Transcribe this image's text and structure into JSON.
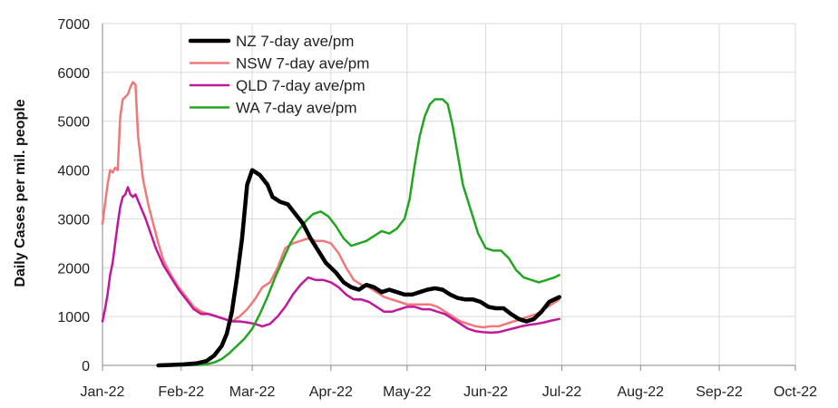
{
  "chart_data": {
    "type": "line",
    "title": "",
    "xlabel": "",
    "ylabel": "Daily Cases per mil. people",
    "ylim": [
      0,
      7000
    ],
    "yticks": [
      0,
      1000,
      2000,
      3000,
      4000,
      5000,
      6000,
      7000
    ],
    "xlim": [
      "2022-01-01",
      "2022-10-01"
    ],
    "xticks": [
      {
        "date": "2022-01-01",
        "label": "Jan-22"
      },
      {
        "date": "2022-02-01",
        "label": "Feb-22"
      },
      {
        "date": "2022-03-01",
        "label": "Mar-22"
      },
      {
        "date": "2022-04-01",
        "label": "Apr-22"
      },
      {
        "date": "2022-05-01",
        "label": "May-22"
      },
      {
        "date": "2022-06-01",
        "label": "Jun-22"
      },
      {
        "date": "2022-07-01",
        "label": "Jul-22"
      },
      {
        "date": "2022-08-01",
        "label": "Aug-22"
      },
      {
        "date": "2022-09-01",
        "label": "Sep-22"
      },
      {
        "date": "2022-10-01",
        "label": "Oct-22"
      }
    ],
    "grid": true,
    "legend_position": "top-left",
    "series": [
      {
        "name": "NZ 7-day ave/pm",
        "color": "#000000",
        "width": 4.5,
        "points": [
          [
            "2022-01-23",
            0
          ],
          [
            "2022-01-28",
            10
          ],
          [
            "2022-02-02",
            20
          ],
          [
            "2022-02-07",
            40
          ],
          [
            "2022-02-11",
            90
          ],
          [
            "2022-02-14",
            200
          ],
          [
            "2022-02-17",
            400
          ],
          [
            "2022-02-19",
            650
          ],
          [
            "2022-02-21",
            1100
          ],
          [
            "2022-02-23",
            1800
          ],
          [
            "2022-02-25",
            2600
          ],
          [
            "2022-02-27",
            3700
          ],
          [
            "2022-03-01",
            4000
          ],
          [
            "2022-03-04",
            3900
          ],
          [
            "2022-03-07",
            3700
          ],
          [
            "2022-03-09",
            3450
          ],
          [
            "2022-03-12",
            3350
          ],
          [
            "2022-03-15",
            3300
          ],
          [
            "2022-03-18",
            3100
          ],
          [
            "2022-03-21",
            2900
          ],
          [
            "2022-03-24",
            2600
          ],
          [
            "2022-03-27",
            2350
          ],
          [
            "2022-03-30",
            2100
          ],
          [
            "2022-04-03",
            1900
          ],
          [
            "2022-04-06",
            1700
          ],
          [
            "2022-04-09",
            1600
          ],
          [
            "2022-04-12",
            1550
          ],
          [
            "2022-04-15",
            1650
          ],
          [
            "2022-04-18",
            1600
          ],
          [
            "2022-04-21",
            1500
          ],
          [
            "2022-04-24",
            1550
          ],
          [
            "2022-04-27",
            1500
          ],
          [
            "2022-04-30",
            1450
          ],
          [
            "2022-05-03",
            1450
          ],
          [
            "2022-05-06",
            1500
          ],
          [
            "2022-05-09",
            1550
          ],
          [
            "2022-05-12",
            1580
          ],
          [
            "2022-05-15",
            1550
          ],
          [
            "2022-05-18",
            1450
          ],
          [
            "2022-05-21",
            1380
          ],
          [
            "2022-05-24",
            1350
          ],
          [
            "2022-05-27",
            1350
          ],
          [
            "2022-05-30",
            1300
          ],
          [
            "2022-06-02",
            1200
          ],
          [
            "2022-06-05",
            1170
          ],
          [
            "2022-06-08",
            1170
          ],
          [
            "2022-06-11",
            1050
          ],
          [
            "2022-06-14",
            950
          ],
          [
            "2022-06-17",
            900
          ],
          [
            "2022-06-20",
            950
          ],
          [
            "2022-06-23",
            1100
          ],
          [
            "2022-06-26",
            1300
          ],
          [
            "2022-06-28",
            1350
          ],
          [
            "2022-06-30",
            1400
          ]
        ]
      },
      {
        "name": "NSW 7-day ave/pm",
        "color": "#f07878",
        "width": 2.5,
        "points": [
          [
            "2022-01-01",
            2900
          ],
          [
            "2022-01-02",
            3300
          ],
          [
            "2022-01-03",
            3700
          ],
          [
            "2022-01-04",
            4000
          ],
          [
            "2022-01-05",
            3950
          ],
          [
            "2022-01-06",
            4050
          ],
          [
            "2022-01-07",
            4000
          ],
          [
            "2022-01-08",
            5100
          ],
          [
            "2022-01-09",
            5450
          ],
          [
            "2022-01-10",
            5500
          ],
          [
            "2022-01-11",
            5550
          ],
          [
            "2022-01-12",
            5700
          ],
          [
            "2022-01-13",
            5800
          ],
          [
            "2022-01-14",
            5750
          ],
          [
            "2022-01-15",
            4700
          ],
          [
            "2022-01-17",
            3800
          ],
          [
            "2022-01-19",
            3300
          ],
          [
            "2022-01-21",
            2900
          ],
          [
            "2022-01-23",
            2500
          ],
          [
            "2022-01-25",
            2150
          ],
          [
            "2022-01-28",
            1850
          ],
          [
            "2022-01-31",
            1600
          ],
          [
            "2022-02-03",
            1400
          ],
          [
            "2022-02-06",
            1200
          ],
          [
            "2022-02-09",
            1100
          ],
          [
            "2022-02-12",
            1050
          ],
          [
            "2022-02-15",
            1000
          ],
          [
            "2022-02-18",
            950
          ],
          [
            "2022-02-21",
            900
          ],
          [
            "2022-02-24",
            1000
          ],
          [
            "2022-02-27",
            1150
          ],
          [
            "2022-03-02",
            1350
          ],
          [
            "2022-03-05",
            1600
          ],
          [
            "2022-03-08",
            1700
          ],
          [
            "2022-03-11",
            2000
          ],
          [
            "2022-03-14",
            2400
          ],
          [
            "2022-03-17",
            2500
          ],
          [
            "2022-03-20",
            2550
          ],
          [
            "2022-03-23",
            2600
          ],
          [
            "2022-03-26",
            2550
          ],
          [
            "2022-03-29",
            2550
          ],
          [
            "2022-04-01",
            2500
          ],
          [
            "2022-04-04",
            2300
          ],
          [
            "2022-04-07",
            2000
          ],
          [
            "2022-04-10",
            1750
          ],
          [
            "2022-04-13",
            1650
          ],
          [
            "2022-04-16",
            1600
          ],
          [
            "2022-04-19",
            1500
          ],
          [
            "2022-04-22",
            1400
          ],
          [
            "2022-04-25",
            1350
          ],
          [
            "2022-04-28",
            1300
          ],
          [
            "2022-05-01",
            1250
          ],
          [
            "2022-05-04",
            1250
          ],
          [
            "2022-05-07",
            1250
          ],
          [
            "2022-05-10",
            1250
          ],
          [
            "2022-05-13",
            1200
          ],
          [
            "2022-05-16",
            1100
          ],
          [
            "2022-05-19",
            1000
          ],
          [
            "2022-05-22",
            900
          ],
          [
            "2022-05-25",
            850
          ],
          [
            "2022-05-28",
            800
          ],
          [
            "2022-05-31",
            780
          ],
          [
            "2022-06-03",
            800
          ],
          [
            "2022-06-06",
            800
          ],
          [
            "2022-06-09",
            850
          ],
          [
            "2022-06-12",
            900
          ],
          [
            "2022-06-15",
            950
          ],
          [
            "2022-06-18",
            1000
          ],
          [
            "2022-06-21",
            1050
          ],
          [
            "2022-06-24",
            1150
          ],
          [
            "2022-06-27",
            1250
          ],
          [
            "2022-06-30",
            1350
          ]
        ]
      },
      {
        "name": "QLD 7-day ave/pm",
        "color": "#c0189a",
        "width": 2.5,
        "points": [
          [
            "2022-01-01",
            900
          ],
          [
            "2022-01-02",
            1150
          ],
          [
            "2022-01-03",
            1450
          ],
          [
            "2022-01-04",
            1850
          ],
          [
            "2022-01-05",
            2100
          ],
          [
            "2022-01-06",
            2500
          ],
          [
            "2022-01-07",
            2900
          ],
          [
            "2022-01-08",
            3250
          ],
          [
            "2022-01-09",
            3450
          ],
          [
            "2022-01-10",
            3500
          ],
          [
            "2022-01-11",
            3650
          ],
          [
            "2022-01-12",
            3500
          ],
          [
            "2022-01-13",
            3450
          ],
          [
            "2022-01-14",
            3500
          ],
          [
            "2022-01-16",
            3250
          ],
          [
            "2022-01-18",
            3000
          ],
          [
            "2022-01-20",
            2700
          ],
          [
            "2022-01-22",
            2400
          ],
          [
            "2022-01-25",
            2050
          ],
          [
            "2022-01-28",
            1800
          ],
          [
            "2022-01-31",
            1550
          ],
          [
            "2022-02-03",
            1350
          ],
          [
            "2022-02-06",
            1150
          ],
          [
            "2022-02-09",
            1050
          ],
          [
            "2022-02-12",
            1050
          ],
          [
            "2022-02-15",
            1000
          ],
          [
            "2022-02-18",
            950
          ],
          [
            "2022-02-21",
            900
          ],
          [
            "2022-02-24",
            900
          ],
          [
            "2022-02-27",
            880
          ],
          [
            "2022-03-02",
            850
          ],
          [
            "2022-03-05",
            800
          ],
          [
            "2022-03-08",
            850
          ],
          [
            "2022-03-11",
            1000
          ],
          [
            "2022-03-14",
            1200
          ],
          [
            "2022-03-17",
            1450
          ],
          [
            "2022-03-20",
            1650
          ],
          [
            "2022-03-23",
            1800
          ],
          [
            "2022-03-26",
            1750
          ],
          [
            "2022-03-29",
            1750
          ],
          [
            "2022-04-01",
            1700
          ],
          [
            "2022-04-04",
            1600
          ],
          [
            "2022-04-07",
            1450
          ],
          [
            "2022-04-10",
            1350
          ],
          [
            "2022-04-13",
            1350
          ],
          [
            "2022-04-16",
            1300
          ],
          [
            "2022-04-19",
            1200
          ],
          [
            "2022-04-22",
            1100
          ],
          [
            "2022-04-25",
            1100
          ],
          [
            "2022-04-28",
            1150
          ],
          [
            "2022-05-01",
            1200
          ],
          [
            "2022-05-04",
            1200
          ],
          [
            "2022-05-07",
            1150
          ],
          [
            "2022-05-10",
            1150
          ],
          [
            "2022-05-13",
            1100
          ],
          [
            "2022-05-16",
            1050
          ],
          [
            "2022-05-19",
            950
          ],
          [
            "2022-05-22",
            850
          ],
          [
            "2022-05-25",
            750
          ],
          [
            "2022-05-28",
            700
          ],
          [
            "2022-05-31",
            680
          ],
          [
            "2022-06-03",
            670
          ],
          [
            "2022-06-06",
            680
          ],
          [
            "2022-06-09",
            720
          ],
          [
            "2022-06-12",
            760
          ],
          [
            "2022-06-15",
            800
          ],
          [
            "2022-06-18",
            830
          ],
          [
            "2022-06-21",
            850
          ],
          [
            "2022-06-24",
            880
          ],
          [
            "2022-06-27",
            920
          ],
          [
            "2022-06-30",
            950
          ]
        ]
      },
      {
        "name": "WA 7-day ave/pm",
        "color": "#22a622",
        "width": 2.5,
        "points": [
          [
            "2022-02-01",
            0
          ],
          [
            "2022-02-05",
            5
          ],
          [
            "2022-02-10",
            15
          ],
          [
            "2022-02-14",
            60
          ],
          [
            "2022-02-17",
            130
          ],
          [
            "2022-02-20",
            250
          ],
          [
            "2022-02-23",
            400
          ],
          [
            "2022-02-26",
            550
          ],
          [
            "2022-03-01",
            750
          ],
          [
            "2022-03-04",
            1050
          ],
          [
            "2022-03-07",
            1400
          ],
          [
            "2022-03-10",
            1800
          ],
          [
            "2022-03-13",
            2150
          ],
          [
            "2022-03-16",
            2500
          ],
          [
            "2022-03-19",
            2750
          ],
          [
            "2022-03-22",
            2950
          ],
          [
            "2022-03-25",
            3100
          ],
          [
            "2022-03-28",
            3150
          ],
          [
            "2022-03-31",
            3050
          ],
          [
            "2022-04-03",
            2850
          ],
          [
            "2022-04-06",
            2600
          ],
          [
            "2022-04-09",
            2450
          ],
          [
            "2022-04-12",
            2500
          ],
          [
            "2022-04-15",
            2550
          ],
          [
            "2022-04-18",
            2650
          ],
          [
            "2022-04-21",
            2750
          ],
          [
            "2022-04-24",
            2700
          ],
          [
            "2022-04-27",
            2800
          ],
          [
            "2022-04-30",
            3000
          ],
          [
            "2022-05-02",
            3400
          ],
          [
            "2022-05-04",
            4100
          ],
          [
            "2022-05-06",
            4700
          ],
          [
            "2022-05-08",
            5100
          ],
          [
            "2022-05-10",
            5350
          ],
          [
            "2022-05-12",
            5450
          ],
          [
            "2022-05-15",
            5450
          ],
          [
            "2022-05-17",
            5350
          ],
          [
            "2022-05-19",
            4900
          ],
          [
            "2022-05-21",
            4300
          ],
          [
            "2022-05-23",
            3700
          ],
          [
            "2022-05-26",
            3200
          ],
          [
            "2022-05-29",
            2700
          ],
          [
            "2022-06-01",
            2400
          ],
          [
            "2022-06-04",
            2350
          ],
          [
            "2022-06-07",
            2350
          ],
          [
            "2022-06-10",
            2200
          ],
          [
            "2022-06-13",
            1950
          ],
          [
            "2022-06-16",
            1800
          ],
          [
            "2022-06-19",
            1750
          ],
          [
            "2022-06-22",
            1700
          ],
          [
            "2022-06-25",
            1750
          ],
          [
            "2022-06-28",
            1800
          ],
          [
            "2022-06-30",
            1850
          ]
        ]
      }
    ]
  }
}
